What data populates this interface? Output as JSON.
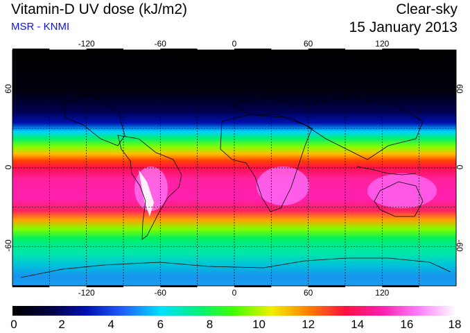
{
  "header": {
    "title": "Vitamin-D UV dose (kJ/m2)",
    "source": "MSR - KNMI",
    "condition": "Clear-sky",
    "date": "15 January 2013"
  },
  "map": {
    "lon_ticks": [
      "-120",
      "-60",
      "0",
      "60",
      "120"
    ],
    "lat_ticks": [
      "60",
      "0",
      "-60"
    ],
    "lon_range": [
      -180,
      180
    ],
    "lat_range": [
      -90,
      90
    ]
  },
  "colorbar": {
    "ticks": [
      "0",
      "2",
      "4",
      "6",
      "8",
      "10",
      "12",
      "14",
      "16",
      "18"
    ],
    "min": 0,
    "max": 18,
    "colors": [
      "#000000",
      "#000040",
      "#0010b0",
      "#2060ff",
      "#00e0ff",
      "#00f080",
      "#40ff00",
      "#f0f000",
      "#ff8000",
      "#ff1040",
      "#ff20b0",
      "#ff80ff",
      "#ffffff"
    ]
  }
}
